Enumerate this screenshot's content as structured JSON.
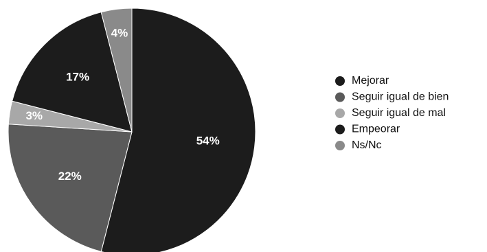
{
  "chart_data": {
    "type": "pie",
    "categories": [
      "Mejorar",
      "Seguir igual de bien",
      "Seguir igual de mal",
      "Empeorar",
      "Ns/Nc"
    ],
    "values": [
      54,
      22,
      3,
      17,
      4
    ],
    "value_labels": [
      "54%",
      "22%",
      "3%",
      "17%",
      "4%"
    ],
    "colors": [
      "#1c1c1c",
      "#5a5a5a",
      "#a8a8a8",
      "#1c1c1c",
      "#8a8a8a"
    ]
  }
}
